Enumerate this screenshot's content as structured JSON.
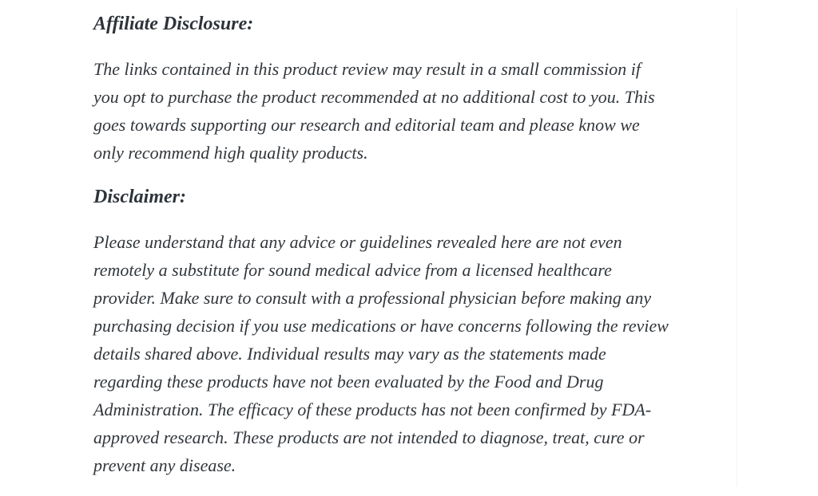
{
  "page": {
    "background_color": "#ffffff",
    "text_color": "#32373c",
    "heading_color": "#2e333a"
  },
  "sections": [
    {
      "heading": "Affiliate Disclosure:",
      "lines": [
        "The links contained in this product review may result in a small commission if",
        "you opt to purchase the product recommended at no additional cost to you. This",
        "goes towards supporting our research and editorial team and please know we",
        "only recommend high quality products."
      ]
    },
    {
      "heading": "Disclaimer:",
      "lines": [
        "Please understand that any advice or guidelines revealed here are not even",
        "remotely a substitute for sound medical advice from a licensed healthcare",
        "provider. Make sure to consult with a professional physician before making any",
        "purchasing decision if you use medications or have concerns following the review",
        "details shared above. Individual results may vary as the statements made",
        "regarding these products have not been evaluated by the Food and Drug",
        "Administration. The efficacy of these products has not been confirmed by FDA-",
        "approved research. These products are not intended to diagnose, treat, cure or",
        "prevent any disease."
      ]
    }
  ]
}
